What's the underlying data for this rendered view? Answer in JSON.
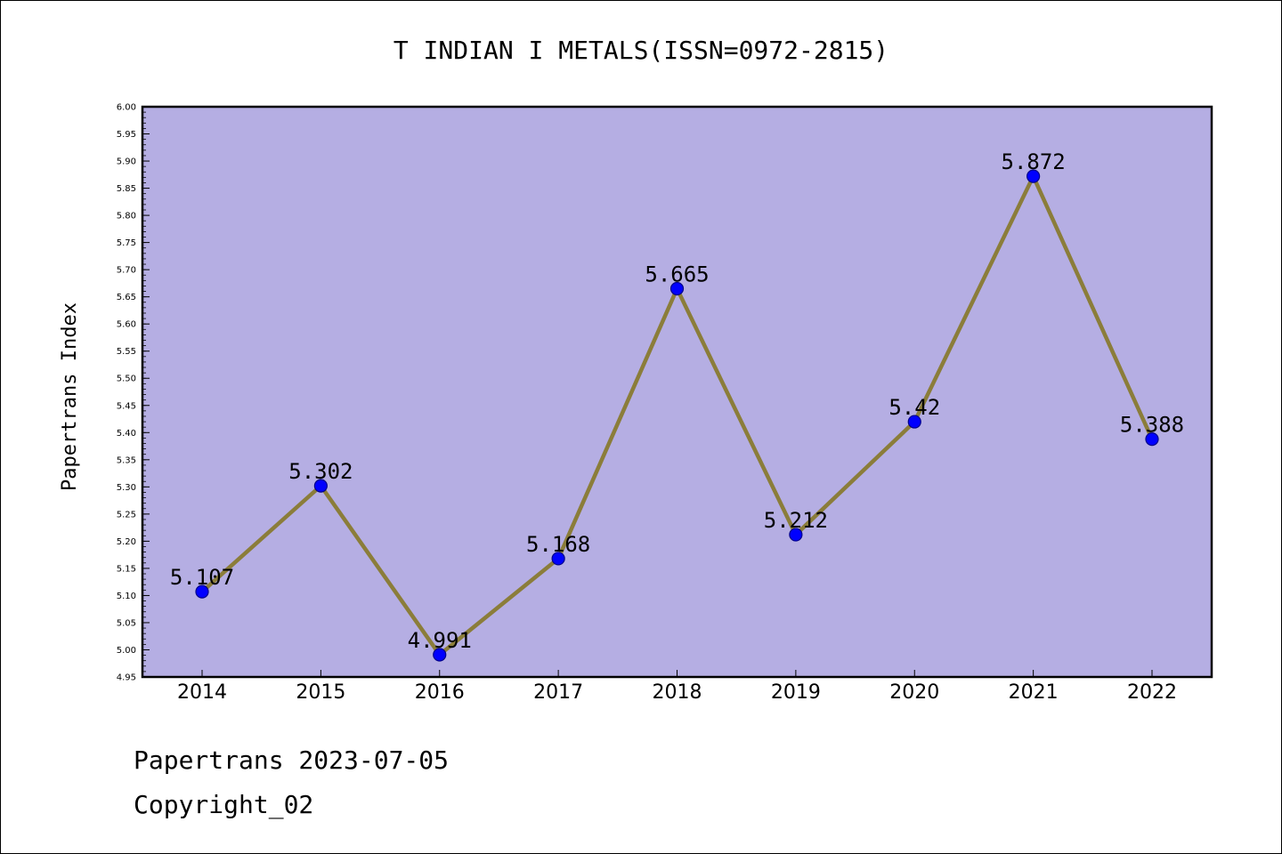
{
  "chart_data": {
    "type": "line",
    "title": "T INDIAN I METALS(ISSN=0972-2815)",
    "xlabel": "",
    "ylabel": "Papertrans Index",
    "categories": [
      "2014",
      "2015",
      "2016",
      "2017",
      "2018",
      "2019",
      "2020",
      "2021",
      "2022"
    ],
    "series": [
      {
        "values": [
          5.107,
          5.302,
          4.991,
          5.168,
          5.665,
          5.212,
          5.42,
          5.872,
          5.388
        ],
        "labels": [
          "5.107",
          "5.302",
          "4.991",
          "5.168",
          "5.665",
          "5.212",
          "5.42",
          "5.872",
          "5.388"
        ]
      }
    ],
    "ylim": [
      4.95,
      6.0
    ],
    "yticks": [
      "4.95",
      "5.00",
      "5.05",
      "5.10",
      "5.15",
      "5.20",
      "5.25",
      "5.30",
      "5.35",
      "5.40",
      "5.45",
      "5.50",
      "5.55",
      "5.60",
      "5.65",
      "5.70",
      "5.75",
      "5.80",
      "5.85",
      "5.90",
      "5.95",
      "6.00"
    ],
    "grid": false,
    "colors": {
      "plot_background": "#b5aee3",
      "line": "#8b7d3a",
      "marker": "#0000ff",
      "marker_edge": "#00008b"
    }
  },
  "footer": {
    "line1": "Papertrans 2023-07-05",
    "line2": "Copyright_02"
  }
}
